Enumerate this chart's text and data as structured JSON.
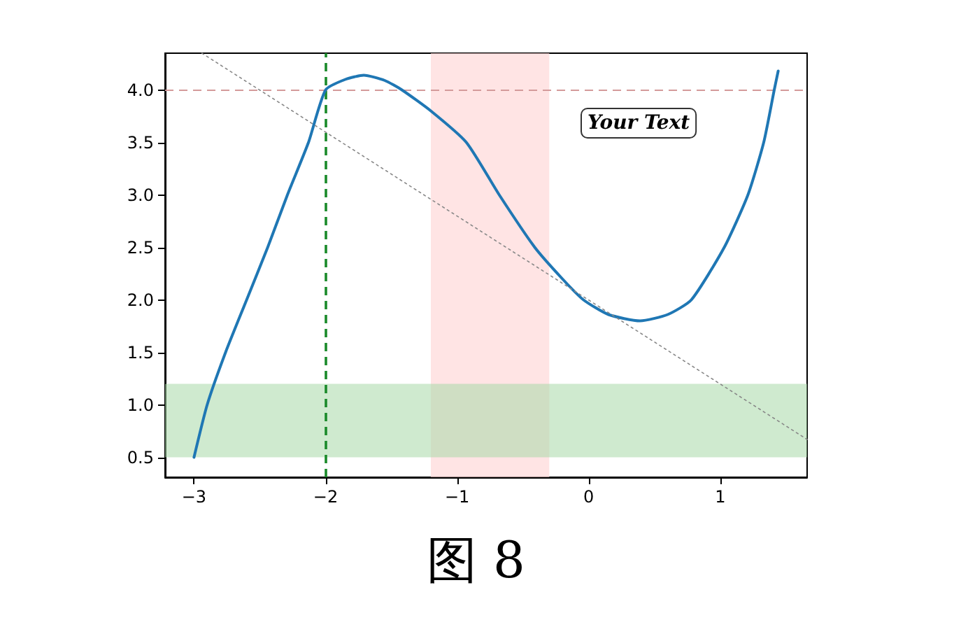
{
  "chart_data": {
    "type": "line",
    "annotations": [
      "Your Text",
      "图 8"
    ],
    "xlim": [
      -3.22,
      1.66
    ],
    "ylim": [
      0.31,
      4.35
    ],
    "xticks": [
      -3,
      -2,
      -1,
      0,
      1
    ],
    "yticks": [
      0.5,
      {
        "value": 1,
        "label": "1.0"
      },
      1.5,
      {
        "value": 2,
        "label": "2.0"
      },
      2.5,
      {
        "value": 3,
        "label": "3.0"
      },
      3.5,
      {
        "value": 4,
        "label": "4.0"
      }
    ],
    "grid": false,
    "series": [
      {
        "color": "#1f77b4",
        "line_style": "solid",
        "x": [
          -3,
          -2.9,
          -2.76,
          -2.6,
          -2.44,
          -2.29,
          -2.13,
          -2.0,
          -1.85,
          -1.71,
          -1.55,
          -1.42,
          -1.2,
          -0.93,
          -0.68,
          -0.41,
          -0.2,
          -0.04,
          0.15,
          0.39,
          0.6,
          0.78,
          1.03,
          1.21,
          1.33,
          1.41,
          1.44
        ],
        "values": [
          0.5,
          1.0,
          1.5,
          2.0,
          2.5,
          3.0,
          3.5,
          4.0,
          4.1,
          4.14,
          4.09,
          4.0,
          3.8,
          3.5,
          3.0,
          2.5,
          2.2,
          2.0,
          1.86,
          1.8,
          1.86,
          2.0,
          2.5,
          3.0,
          3.5,
          4.0,
          4.18
        ]
      },
      {
        "type": "line",
        "color": "#888888",
        "line_style": "dotted",
        "x": [
          -2.94,
          1.66
        ],
        "values": [
          4.35,
          0.67
        ]
      }
    ],
    "ref_lines": [
      {
        "axis": "y",
        "value": 4.0,
        "color": "#d49a9a",
        "line_style": "dashed"
      },
      {
        "axis": "x",
        "value": -2,
        "color": "#1a8a2a",
        "line_style": "dashed"
      }
    ],
    "bands": [
      {
        "axis": "x",
        "from": -1.2,
        "to": -0.3,
        "color": "#ffd6d6"
      },
      {
        "axis": "y",
        "from": 0.5,
        "to": 1.2,
        "color": "#a8d8a8"
      }
    ]
  }
}
